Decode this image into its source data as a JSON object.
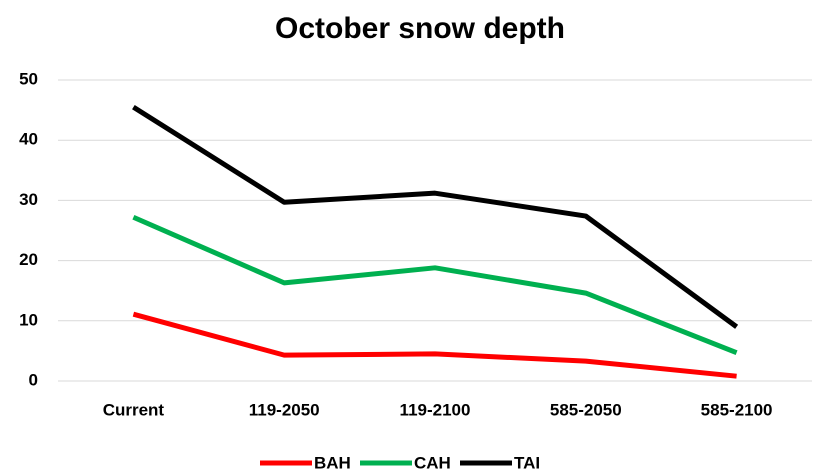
{
  "chart_data": {
    "type": "line",
    "title": "October snow depth",
    "categories": [
      "Current",
      "119-2050",
      "119-2100",
      "585-2050",
      "585-2100"
    ],
    "series": [
      {
        "name": "BAH",
        "color": "#ff0000",
        "values": [
          11.1,
          4.3,
          4.5,
          3.3,
          0.8
        ]
      },
      {
        "name": "CAH",
        "color": "#00b050",
        "values": [
          27.2,
          16.3,
          18.8,
          14.6,
          4.7
        ]
      },
      {
        "name": "TAI",
        "color": "#000000",
        "values": [
          45.5,
          29.7,
          31.2,
          27.4,
          9.0
        ]
      }
    ],
    "ylim": [
      0,
      50
    ],
    "yticks": [
      0,
      10,
      20,
      30,
      40,
      50
    ],
    "grid": true,
    "legend": "bottom"
  }
}
